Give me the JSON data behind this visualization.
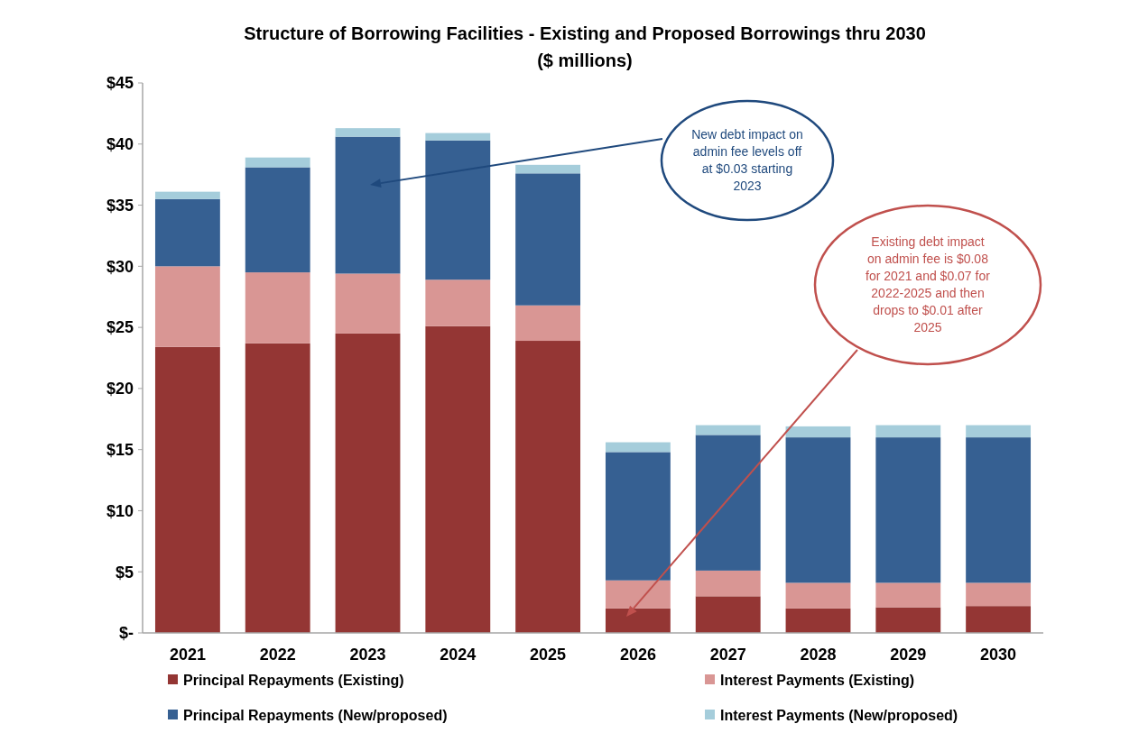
{
  "chart_data": {
    "type": "bar",
    "stacked": true,
    "title": "Structure of Borrowing Facilities - Existing and Proposed Borrowings thru 2030",
    "subtitle": "($ millions)",
    "categories": [
      "2021",
      "2022",
      "2023",
      "2024",
      "2025",
      "2026",
      "2027",
      "2028",
      "2029",
      "2030"
    ],
    "series": [
      {
        "name": "Principal Repayments (Existing)",
        "color": "#943634",
        "values": [
          23.4,
          23.7,
          24.5,
          25.1,
          23.9,
          2.0,
          3.0,
          2.0,
          2.1,
          2.2
        ]
      },
      {
        "name": "Interest Payments (Existing)",
        "color": "#d99694",
        "values": [
          6.6,
          5.8,
          4.9,
          3.8,
          2.9,
          2.3,
          2.1,
          2.1,
          2.0,
          1.9
        ]
      },
      {
        "name": "Principal Repayments (New/proposed)",
        "color": "#366092",
        "values": [
          5.5,
          8.6,
          11.2,
          11.4,
          10.8,
          10.5,
          11.1,
          11.9,
          11.9,
          11.9
        ]
      },
      {
        "name": "Interest Payments (New/proposed)",
        "color": "#a5cddb",
        "values": [
          0.6,
          0.8,
          0.7,
          0.6,
          0.7,
          0.8,
          0.8,
          0.9,
          1.0,
          1.0
        ]
      }
    ],
    "ylim": [
      0,
      45
    ],
    "yticks": [
      {
        "value": 0,
        "label": "$-"
      },
      {
        "value": 5,
        "label": "$5"
      },
      {
        "value": 10,
        "label": "$10"
      },
      {
        "value": 15,
        "label": "$15"
      },
      {
        "value": 20,
        "label": "$20"
      },
      {
        "value": 25,
        "label": "$25"
      },
      {
        "value": 30,
        "label": "$30"
      },
      {
        "value": 35,
        "label": "$35"
      },
      {
        "value": 40,
        "label": "$40"
      },
      {
        "value": 45,
        "label": "$45"
      }
    ],
    "legend": "bottom",
    "annotations": [
      "New debt impact on admin fee levels off at $0.03 starting 2023",
      "Existing debt impact on admin fee is $0.08 for 2021 and $0.07 for 2022-2025 and then drops to $0.01 after 2025"
    ]
  }
}
